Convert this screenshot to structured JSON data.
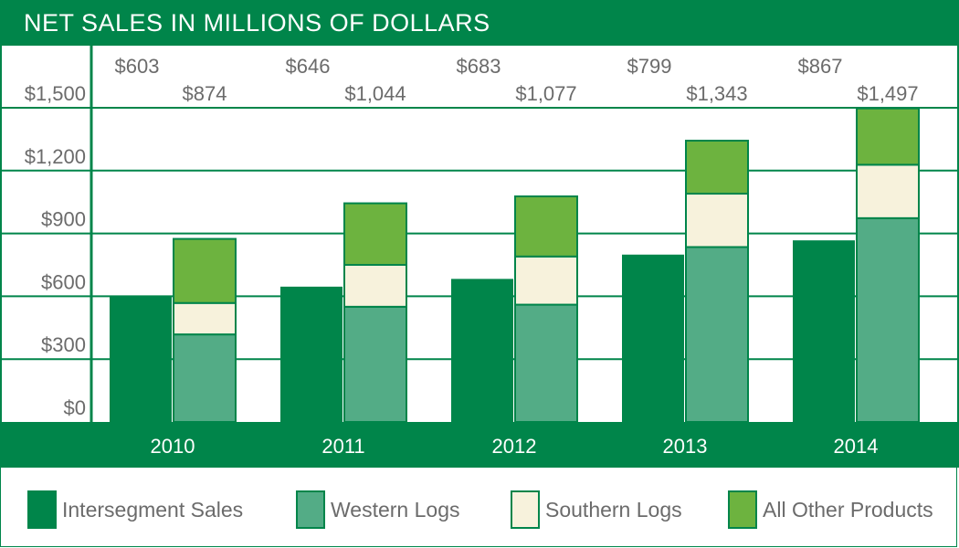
{
  "chart_data": {
    "type": "bar",
    "title": "NET SALES IN MILLIONS OF DOLLARS",
    "categories": [
      "2010",
      "2011",
      "2012",
      "2013",
      "2014"
    ],
    "ylim": [
      0,
      1500
    ],
    "y_ticks": [
      0,
      300,
      600,
      900,
      1200,
      1500
    ],
    "y_tick_labels": [
      "$0",
      "$300",
      "$600",
      "$900",
      "$1,200",
      "$1,500"
    ],
    "grid": true,
    "legend_position": "bottom",
    "bars": [
      {
        "name": "Intersegment Sales",
        "color": "#00854a",
        "values": [
          603,
          646,
          683,
          799,
          867
        ],
        "labels": [
          "$603",
          "$646",
          "$683",
          "$799",
          "$867"
        ]
      },
      {
        "stacked": true,
        "series": [
          {
            "name": "Western Logs",
            "color": "#53ac86",
            "values": [
              418,
              550,
              560,
              835,
              973
            ]
          },
          {
            "name": "Southern Logs",
            "color": "#f7f2dc",
            "values": [
              150,
              200,
              230,
              255,
              255
            ]
          },
          {
            "name": "All Other Products",
            "color": "#6db33f",
            "values": [
              306,
              294,
              287,
              253,
              269
            ]
          }
        ],
        "totals": [
          874,
          1044,
          1077,
          1343,
          1497
        ],
        "total_labels": [
          "$874",
          "$1,044",
          "$1,077",
          "$1,343",
          "$1,497"
        ]
      }
    ]
  },
  "legend": [
    {
      "label": "Intersegment Sales",
      "color": "#00854a"
    },
    {
      "label": "Western Logs",
      "color": "#53ac86"
    },
    {
      "label": "Southern Logs",
      "color": "#f7f2dc"
    },
    {
      "label": "All Other Products",
      "color": "#6db33f"
    }
  ]
}
